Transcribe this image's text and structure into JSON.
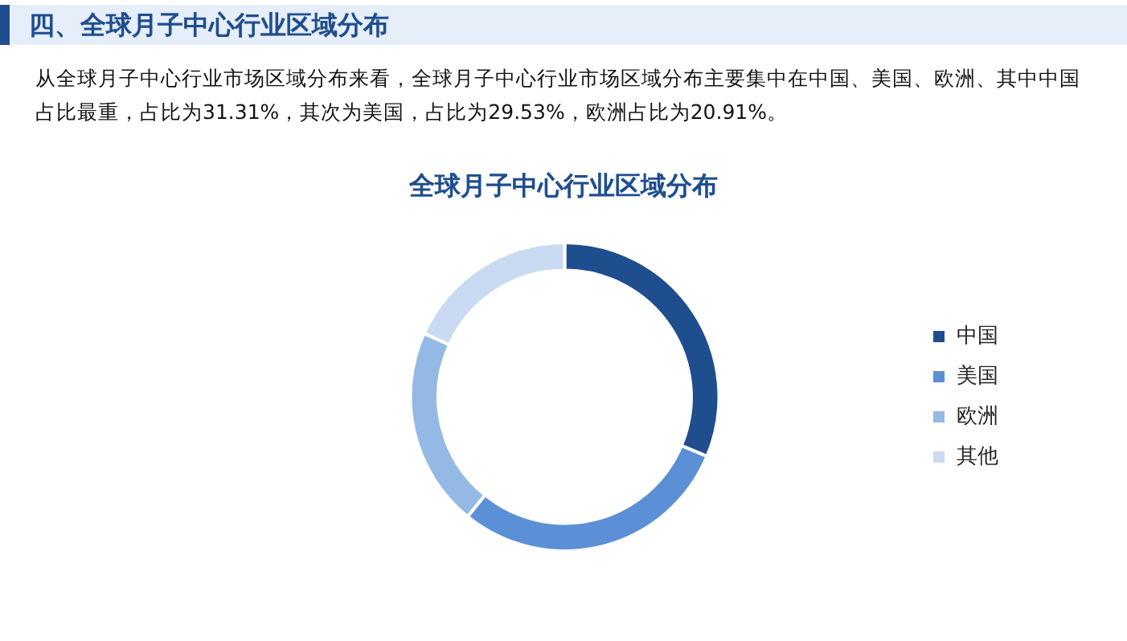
{
  "chart_data": {
    "type": "donut",
    "title": "全球月子中心行业区域分布",
    "annotations": [
      "四、全球月子中心行业区域分布",
      "从全球月子中心行业市场区域分布来看，全球月子中心行业市场区域分布主要集中在中国、美国、欧洲、其中中国占比最重，占比为31.31%，其次为美国，占比为29.53%，欧洲占比为20.91%。"
    ],
    "categories": [
      "中国",
      "美国",
      "欧洲",
      "其他"
    ],
    "values": [
      31.31,
      29.53,
      20.91,
      18.25
    ],
    "colors": [
      "#1f4e8f",
      "#5b8fd6",
      "#95b9e5",
      "#c9daf2"
    ],
    "legend": "right"
  }
}
